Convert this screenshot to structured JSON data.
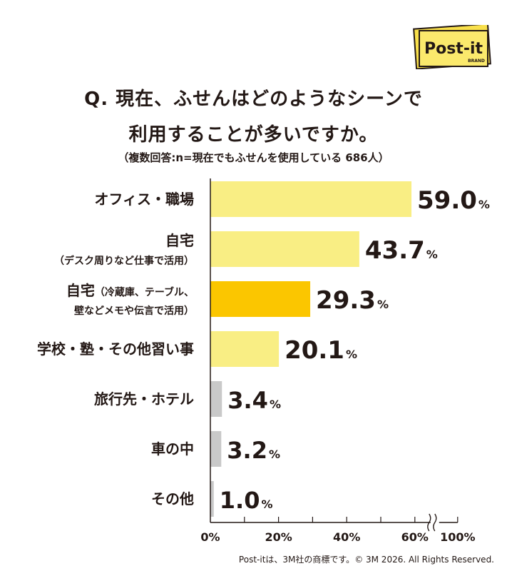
{
  "header": {
    "title_line1": "Q. 現在、ふせんはどのようなシーンで",
    "title_line2": "利用することが多いですか。",
    "subtitle": "（複数回答:n=現在でもふせんを使用している 686人）"
  },
  "logo": {
    "text": "Post-it",
    "sub": "BRAND",
    "colors": {
      "back": "#F9E04B",
      "front": "#FBE96C",
      "border": "#231815"
    }
  },
  "chart_data": {
    "type": "bar",
    "orientation": "horizontal",
    "unit": "%",
    "categories": [
      {
        "main": "オフィス・職場",
        "sub": "",
        "sub_line2": ""
      },
      {
        "main": "自宅",
        "sub": "（デスク周りなど仕事で活用）",
        "sub_line2": ""
      },
      {
        "main": "自宅",
        "sub": "（冷蔵庫、テーブル、",
        "sub_line2": "壁などメモや伝言で活用）"
      },
      {
        "main": "学校・塾・その他習い事",
        "sub": "",
        "sub_line2": ""
      },
      {
        "main": "旅行先・ホテル",
        "sub": "",
        "sub_line2": ""
      },
      {
        "main": "車の中",
        "sub": "",
        "sub_line2": ""
      },
      {
        "main": "その他",
        "sub": "",
        "sub_line2": ""
      }
    ],
    "values": [
      59.0,
      43.7,
      29.3,
      20.1,
      3.4,
      3.2,
      1.0
    ],
    "value_labels": [
      "59.0",
      "43.7",
      "29.3",
      "20.1",
      "3.4",
      "3.2",
      "1.0"
    ],
    "bar_colors": [
      "#F9EE84",
      "#F9EE84",
      "#FBC600",
      "#F9EE84",
      "#C9C9C9",
      "#C9C9C9",
      "#C9C9C9"
    ],
    "x_ticks": [
      0,
      20,
      40,
      60
    ],
    "x_tick_labels": [
      "0%",
      "20%",
      "40%",
      "60%"
    ],
    "x_max_label": "100%",
    "xlim": [
      0,
      60
    ],
    "axis_break": true
  },
  "footer": "Post-itは、3M社の商標です。© 3M 2026. All Rights Reserved."
}
